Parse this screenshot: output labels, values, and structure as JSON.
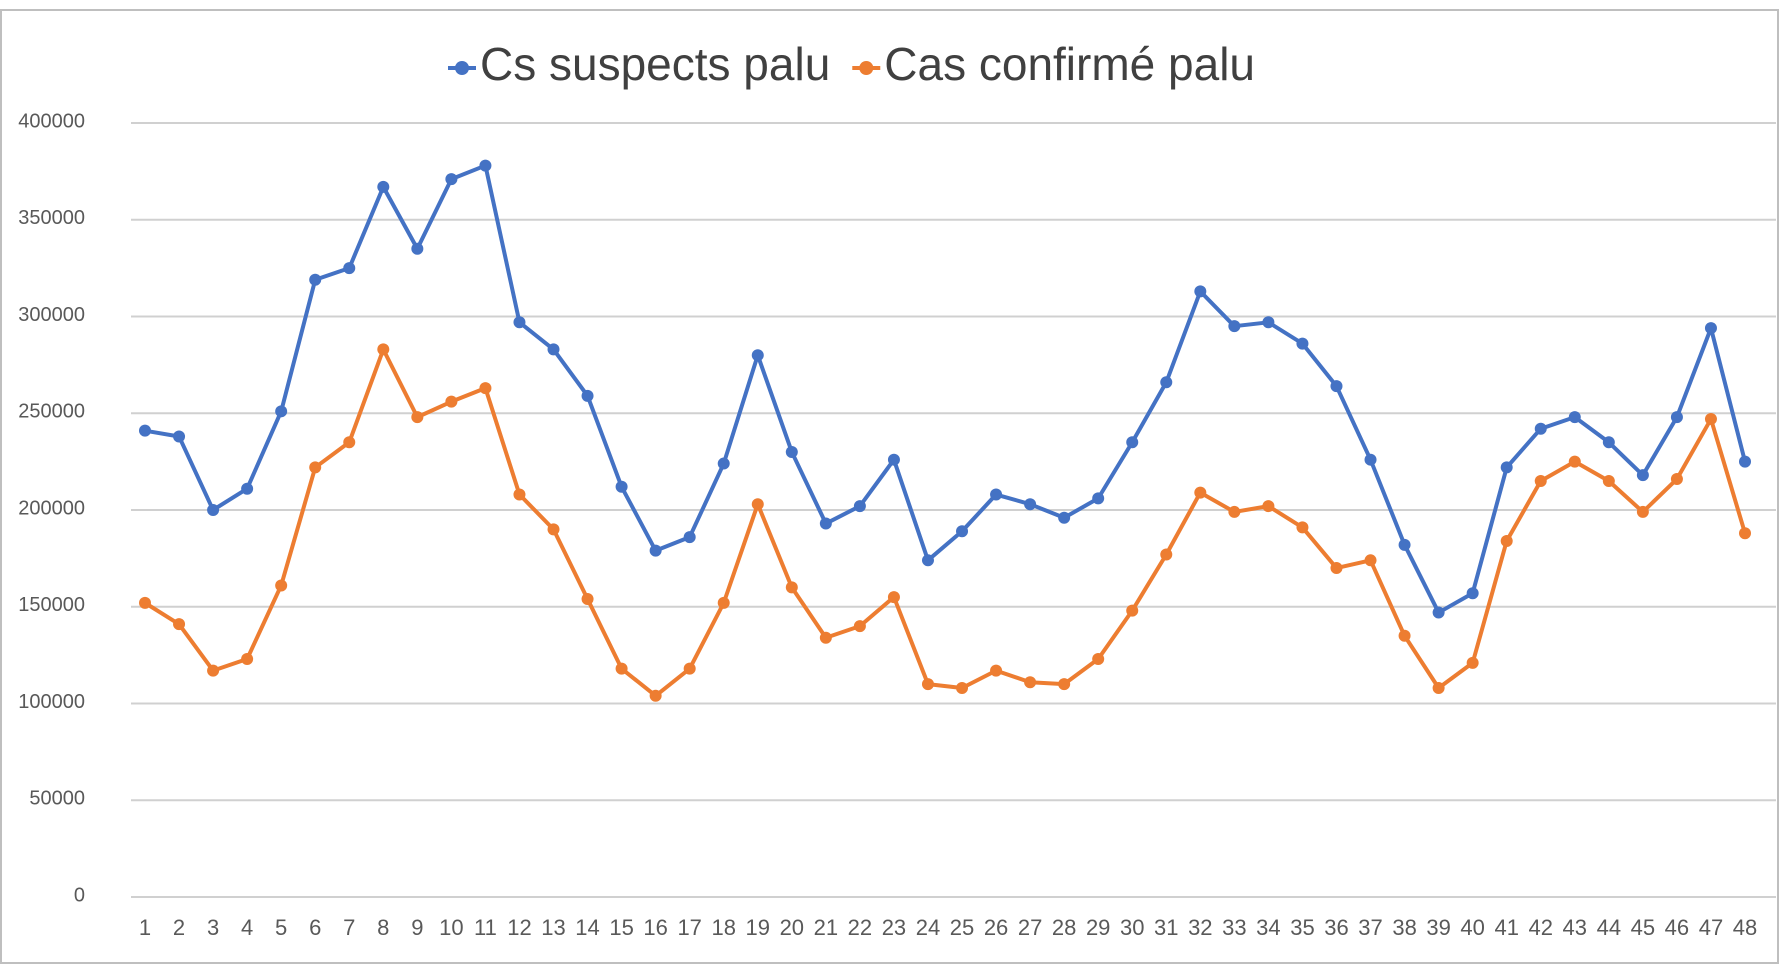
{
  "chart_data": {
    "type": "line",
    "categories": [
      "1",
      "2",
      "3",
      "4",
      "5",
      "6",
      "7",
      "8",
      "9",
      "10",
      "11",
      "12",
      "13",
      "14",
      "15",
      "16",
      "17",
      "18",
      "19",
      "20",
      "21",
      "22",
      "23",
      "24",
      "25",
      "26",
      "27",
      "28",
      "29",
      "30",
      "31",
      "32",
      "33",
      "34",
      "35",
      "36",
      "37",
      "38",
      "39",
      "40",
      "41",
      "42",
      "43",
      "44",
      "45",
      "46",
      "47",
      "48"
    ],
    "series": [
      {
        "name": "Cs suspects palu",
        "color": "#4472c4",
        "values": [
          241000,
          238000,
          200000,
          211000,
          251000,
          319000,
          325000,
          367000,
          335000,
          371000,
          378000,
          297000,
          283000,
          259000,
          212000,
          179000,
          186000,
          224000,
          280000,
          230000,
          193000,
          202000,
          226000,
          174000,
          189000,
          208000,
          203000,
          196000,
          206000,
          235000,
          266000,
          313000,
          295000,
          297000,
          286000,
          264000,
          226000,
          182000,
          147000,
          157000,
          222000,
          242000,
          248000,
          235000,
          218000,
          248000,
          294000,
          225000
        ]
      },
      {
        "name": "Cas confirmé palu",
        "color": "#ed7d31",
        "values": [
          152000,
          141000,
          117000,
          123000,
          161000,
          222000,
          235000,
          283000,
          248000,
          256000,
          263000,
          208000,
          190000,
          154000,
          118000,
          104000,
          118000,
          152000,
          203000,
          160000,
          134000,
          140000,
          155000,
          110000,
          108000,
          117000,
          111000,
          110000,
          123000,
          148000,
          177000,
          209000,
          199000,
          202000,
          191000,
          170000,
          174000,
          135000,
          108000,
          121000,
          184000,
          215000,
          225000,
          215000,
          199000,
          216000,
          247000,
          188000
        ]
      }
    ],
    "ylim": [
      0,
      400000
    ],
    "yticks": [
      0,
      50000,
      100000,
      150000,
      200000,
      250000,
      300000,
      350000,
      400000
    ],
    "grid": true,
    "legend": "top"
  }
}
